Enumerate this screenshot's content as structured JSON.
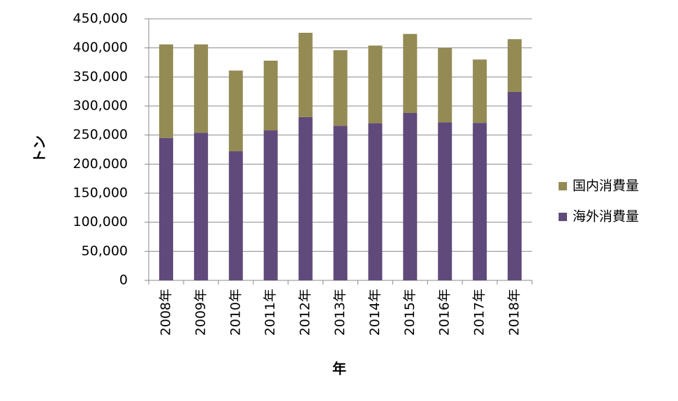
{
  "chart_data": {
    "type": "stacked_bar",
    "categories": [
      "2008年",
      "2009年",
      "2010年",
      "2011年",
      "2012年",
      "2013年",
      "2014年",
      "2015年",
      "2016年",
      "2017年",
      "2018年"
    ],
    "series": [
      {
        "name": "海外消費量",
        "color": "#604a7b",
        "values": [
          245000,
          254000,
          222000,
          258000,
          281000,
          266000,
          270000,
          288000,
          272000,
          271000,
          324000
        ]
      },
      {
        "name": "国内消費量",
        "color": "#948a54",
        "values": [
          161000,
          152000,
          139000,
          120000,
          145000,
          130000,
          134000,
          136000,
          128000,
          109000,
          91000
        ]
      }
    ],
    "x_label": "年",
    "y_label": "トン",
    "ylim": [
      0,
      450000
    ],
    "yticks": [
      0,
      {
        "value": 50000,
        "label": "50,000"
      },
      {
        "value": 100000,
        "label": "100,000"
      },
      {
        "value": 150000,
        "label": "150,000"
      },
      {
        "value": 200000,
        "label": "200,000"
      },
      {
        "value": 250000,
        "label": "250,000"
      },
      {
        "value": 300000,
        "label": "300,000"
      },
      {
        "value": 350000,
        "label": "350,000"
      },
      {
        "value": 400000,
        "label": "400,000"
      },
      {
        "value": 450000,
        "label": "450,000"
      }
    ],
    "grid": true,
    "legend": "right"
  }
}
